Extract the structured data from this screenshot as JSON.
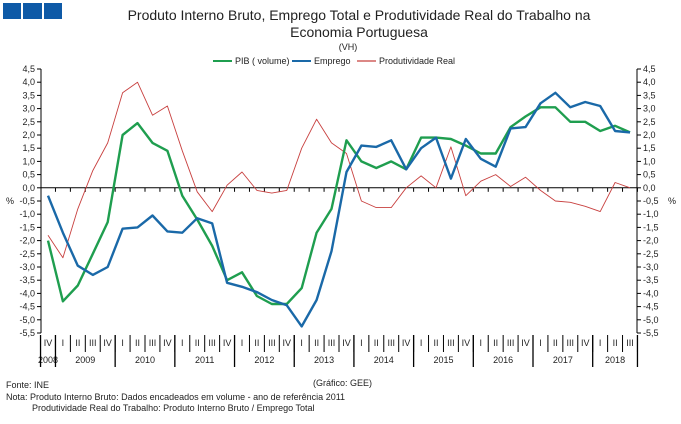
{
  "logo": {
    "color": "#0e5aa7"
  },
  "chart_data": {
    "type": "line",
    "title_line1": "Produto Interno Bruto, Emprego Total e Produtividade Real do Trabalho na",
    "title_line2": "Economia Portuguesa",
    "subtitle": "(VH)",
    "ylabel_left": "%",
    "ylabel_right": "%",
    "ylim": [
      -5.5,
      4.5
    ],
    "ytick_step": 0.5,
    "legend_position": "top-center",
    "quarters": [
      "IV",
      "I",
      "II",
      "III",
      "IV",
      "I",
      "II",
      "III",
      "IV",
      "I",
      "II",
      "III",
      "IV",
      "I",
      "II",
      "III",
      "IV",
      "I",
      "II",
      "III",
      "IV",
      "I",
      "II",
      "III",
      "IV",
      "I",
      "II",
      "III",
      "IV",
      "I",
      "II",
      "III",
      "IV",
      "I",
      "II",
      "III",
      "IV",
      "I",
      "II",
      "III"
    ],
    "years": [
      {
        "label": "2008",
        "count": 1
      },
      {
        "label": "2009",
        "count": 4
      },
      {
        "label": "2010",
        "count": 4
      },
      {
        "label": "2011",
        "count": 4
      },
      {
        "label": "2012",
        "count": 4
      },
      {
        "label": "2013",
        "count": 4
      },
      {
        "label": "2014",
        "count": 4
      },
      {
        "label": "2015",
        "count": 4
      },
      {
        "label": "2016",
        "count": 4
      },
      {
        "label": "2017",
        "count": 4
      },
      {
        "label": "2018",
        "count": 3
      }
    ],
    "series": [
      {
        "name": "PIB ( volume)",
        "color": "#1f9e4f",
        "width": 2.4,
        "values": [
          -2.0,
          -4.3,
          -3.7,
          -2.5,
          -1.3,
          2.0,
          2.45,
          1.7,
          1.4,
          -0.3,
          -1.2,
          -2.2,
          -3.5,
          -3.2,
          -4.1,
          -4.4,
          -4.4,
          -3.8,
          -1.7,
          -0.8,
          1.8,
          1.0,
          0.75,
          1.0,
          0.7,
          1.9,
          1.9,
          1.85,
          1.6,
          1.3,
          1.3,
          2.3,
          2.7,
          3.05,
          3.05,
          2.5,
          2.5,
          2.15,
          2.35,
          2.1
        ]
      },
      {
        "name": "Emprego",
        "color": "#1a69a8",
        "width": 2.4,
        "values": [
          -0.3,
          -1.7,
          -2.95,
          -3.3,
          -3.0,
          -1.55,
          -1.5,
          -1.05,
          -1.65,
          -1.7,
          -1.15,
          -1.35,
          -3.6,
          -3.75,
          -3.95,
          -4.25,
          -4.45,
          -5.25,
          -4.25,
          -2.4,
          0.6,
          1.6,
          1.55,
          1.8,
          0.7,
          1.5,
          1.9,
          0.35,
          1.85,
          1.1,
          0.8,
          2.25,
          2.3,
          3.2,
          3.6,
          3.05,
          3.25,
          3.1,
          2.15,
          2.1
        ]
      },
      {
        "name": "Produtividade Real",
        "color": "#c8403f",
        "width": 0.9,
        "values": [
          -1.8,
          -2.65,
          -0.8,
          0.65,
          1.7,
          3.6,
          4.0,
          2.75,
          3.1,
          1.4,
          -0.15,
          -0.9,
          0.1,
          0.6,
          -0.1,
          -0.2,
          -0.1,
          1.5,
          2.6,
          1.7,
          1.3,
          -0.5,
          -0.75,
          -0.75,
          0.0,
          0.45,
          0.0,
          1.55,
          -0.3,
          0.25,
          0.5,
          0.05,
          0.4,
          -0.1,
          -0.5,
          -0.55,
          -0.7,
          -0.9,
          0.2,
          0.0
        ]
      }
    ]
  },
  "footer": {
    "source": "Fonte:  INE",
    "credit": "(Gráfico:  GEE)",
    "note1": "Nota: Produto Interno Bruto: Dados encadeados em volume  - ano de referência  2011",
    "note2": "Produtividade  Real do Trabalho:  Produto Interno  Bruto / Emprego Total"
  }
}
